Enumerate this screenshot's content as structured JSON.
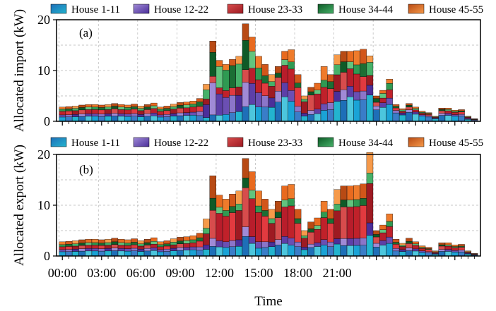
{
  "chart_data": [
    {
      "type": "bar",
      "stacked": true,
      "panel_label": "(a)",
      "ylabel": "Allocated import (kW)",
      "xlabel": "",
      "ylim": [
        0,
        20
      ],
      "yticks": [
        "0",
        "10",
        "20"
      ],
      "grid": true,
      "legend": {
        "placement": "top",
        "entries": [
          "House 1-11",
          "House 12-22",
          "House 23-33",
          "House 34-44",
          "House 45-55"
        ]
      },
      "x_unit": "half-hour slot starting 00:00",
      "totals": [
        2.8,
        2.9,
        3.0,
        3.2,
        3.3,
        3.3,
        3.2,
        3.3,
        3.5,
        3.3,
        3.2,
        3.4,
        3.0,
        3.3,
        3.6,
        2.8,
        3.0,
        3.4,
        3.7,
        3.8,
        4.0,
        4.5,
        7.3,
        15.8,
        12.0,
        11.2,
        12.2,
        12.8,
        19.2,
        16.6,
        12.8,
        11.2,
        9.2,
        10.8,
        13.8,
        14.1,
        9.2,
        5.0,
        6.7,
        7.5,
        10.8,
        9.2,
        13.1,
        13.8,
        13.8,
        13.9,
        14.2,
        12.9,
        5.0,
        6.1,
        8.3,
        3.3,
        2.5,
        3.5,
        2.8,
        2.0,
        1.7,
        1.0,
        2.6,
        2.6,
        2.2,
        2.3,
        1.0,
        0.5
      ],
      "shares": {
        "House 1-11": [
          0.3,
          0.3,
          0.3,
          0.3,
          0.3,
          0.3,
          0.3,
          0.3,
          0.3,
          0.3,
          0.3,
          0.3,
          0.3,
          0.3,
          0.3,
          0.3,
          0.3,
          0.3,
          0.3,
          0.3,
          0.3,
          0.25,
          0.1,
          0.08,
          0.1,
          0.12,
          0.14,
          0.15,
          0.15,
          0.2,
          0.22,
          0.25,
          0.3,
          0.35,
          0.35,
          0.28,
          0.2,
          0.2,
          0.2,
          0.2,
          0.2,
          0.25,
          0.3,
          0.3,
          0.35,
          0.3,
          0.3,
          0.4,
          0.45,
          0.45,
          0.4,
          0.5,
          0.5,
          0.5,
          0.5,
          0.5,
          0.5,
          0.5,
          0.45,
          0.45,
          0.45,
          0.45,
          0.4,
          0.4
        ],
        "House 12-22": [
          0.15,
          0.15,
          0.15,
          0.15,
          0.15,
          0.15,
          0.15,
          0.15,
          0.15,
          0.15,
          0.15,
          0.15,
          0.15,
          0.15,
          0.15,
          0.15,
          0.15,
          0.15,
          0.15,
          0.15,
          0.15,
          0.18,
          0.35,
          0.4,
          0.35,
          0.3,
          0.28,
          0.25,
          0.25,
          0.25,
          0.22,
          0.2,
          0.2,
          0.2,
          0.2,
          0.15,
          0.12,
          0.12,
          0.12,
          0.12,
          0.12,
          0.15,
          0.15,
          0.15,
          0.15,
          0.12,
          0.12,
          0.15,
          0.15,
          0.15,
          0.15,
          0.15,
          0.15,
          0.15,
          0.15,
          0.15,
          0.15,
          0.15,
          0.15,
          0.15,
          0.15,
          0.15,
          0.2,
          0.2
        ],
        "House 23-33": [
          0.25,
          0.25,
          0.25,
          0.25,
          0.25,
          0.25,
          0.25,
          0.25,
          0.25,
          0.25,
          0.25,
          0.25,
          0.25,
          0.25,
          0.25,
          0.25,
          0.25,
          0.25,
          0.25,
          0.25,
          0.25,
          0.22,
          0.15,
          0.08,
          0.1,
          0.12,
          0.12,
          0.13,
          0.13,
          0.18,
          0.2,
          0.22,
          0.25,
          0.25,
          0.25,
          0.3,
          0.4,
          0.45,
          0.45,
          0.4,
          0.3,
          0.3,
          0.25,
          0.25,
          0.25,
          0.25,
          0.2,
          0.15,
          0.15,
          0.15,
          0.2,
          0.15,
          0.15,
          0.15,
          0.15,
          0.15,
          0.15,
          0.15,
          0.2,
          0.2,
          0.2,
          0.2,
          0.2,
          0.2
        ],
        "House 34-44": [
          0.15,
          0.15,
          0.15,
          0.15,
          0.15,
          0.15,
          0.15,
          0.15,
          0.15,
          0.15,
          0.15,
          0.15,
          0.15,
          0.15,
          0.15,
          0.15,
          0.15,
          0.15,
          0.15,
          0.15,
          0.15,
          0.2,
          0.25,
          0.3,
          0.35,
          0.36,
          0.36,
          0.35,
          0.3,
          0.2,
          0.18,
          0.13,
          0.1,
          0.08,
          0.08,
          0.1,
          0.1,
          0.1,
          0.1,
          0.1,
          0.13,
          0.15,
          0.15,
          0.15,
          0.1,
          0.13,
          0.18,
          0.2,
          0.15,
          0.15,
          0.15,
          0.1,
          0.1,
          0.1,
          0.1,
          0.1,
          0.1,
          0.1,
          0.1,
          0.1,
          0.1,
          0.1,
          0.1,
          0.1
        ],
        "House 45-55": [
          0.15,
          0.15,
          0.15,
          0.15,
          0.15,
          0.15,
          0.15,
          0.15,
          0.15,
          0.15,
          0.15,
          0.15,
          0.15,
          0.15,
          0.15,
          0.15,
          0.15,
          0.15,
          0.15,
          0.15,
          0.15,
          0.15,
          0.15,
          0.14,
          0.1,
          0.1,
          0.1,
          0.12,
          0.17,
          0.17,
          0.18,
          0.2,
          0.15,
          0.12,
          0.12,
          0.17,
          0.18,
          0.13,
          0.13,
          0.18,
          0.25,
          0.15,
          0.15,
          0.15,
          0.15,
          0.2,
          0.2,
          0.1,
          0.1,
          0.1,
          0.1,
          0.1,
          0.1,
          0.1,
          0.1,
          0.1,
          0.1,
          0.1,
          0.1,
          0.1,
          0.1,
          0.1,
          0.1,
          0.1
        ]
      }
    },
    {
      "type": "bar",
      "stacked": true,
      "panel_label": "(b)",
      "ylabel": "Allocated export (kW)",
      "xlabel": "Time",
      "ylim": [
        0,
        20
      ],
      "yticks": [
        "0",
        "10",
        "20"
      ],
      "xticks": [
        "00:00",
        "03:00",
        "06:00",
        "09:00",
        "12:00",
        "15:00",
        "18:00",
        "21:00"
      ],
      "grid": true,
      "legend": {
        "placement": "top",
        "entries": [
          "House 1-11",
          "House 12-22",
          "House 23-33",
          "House 34-44",
          "House 45-55"
        ]
      },
      "x_unit": "half-hour slot starting 00:00",
      "totals": [
        2.8,
        2.9,
        3.0,
        3.2,
        3.3,
        3.3,
        3.2,
        3.3,
        3.5,
        3.3,
        3.2,
        3.4,
        3.0,
        3.3,
        3.6,
        2.8,
        3.0,
        3.4,
        3.7,
        3.8,
        4.0,
        4.5,
        7.3,
        15.8,
        12.0,
        11.2,
        12.2,
        12.8,
        19.2,
        16.6,
        12.8,
        11.2,
        9.2,
        10.8,
        13.8,
        14.1,
        9.2,
        5.0,
        6.7,
        7.5,
        10.8,
        9.2,
        13.1,
        13.8,
        13.8,
        13.9,
        14.2,
        20.4,
        5.0,
        6.1,
        8.3,
        3.3,
        2.5,
        3.5,
        2.8,
        2.0,
        1.7,
        1.0,
        2.6,
        2.6,
        2.2,
        2.3,
        1.0,
        0.5
      ],
      "shares": {
        "House 1-11": [
          0.3,
          0.3,
          0.3,
          0.3,
          0.3,
          0.3,
          0.3,
          0.3,
          0.3,
          0.3,
          0.3,
          0.3,
          0.3,
          0.3,
          0.3,
          0.3,
          0.3,
          0.3,
          0.3,
          0.3,
          0.3,
          0.25,
          0.18,
          0.12,
          0.15,
          0.15,
          0.15,
          0.15,
          0.2,
          0.15,
          0.12,
          0.15,
          0.2,
          0.2,
          0.18,
          0.15,
          0.2,
          0.25,
          0.25,
          0.25,
          0.2,
          0.2,
          0.18,
          0.15,
          0.15,
          0.15,
          0.15,
          0.2,
          0.35,
          0.35,
          0.3,
          0.3,
          0.35,
          0.3,
          0.35,
          0.35,
          0.35,
          0.35,
          0.35,
          0.35,
          0.35,
          0.35,
          0.4,
          0.4
        ],
        "House 12-22": [
          0.15,
          0.15,
          0.15,
          0.15,
          0.15,
          0.15,
          0.15,
          0.15,
          0.15,
          0.15,
          0.15,
          0.15,
          0.15,
          0.15,
          0.15,
          0.15,
          0.15,
          0.15,
          0.15,
          0.15,
          0.15,
          0.15,
          0.12,
          0.1,
          0.1,
          0.1,
          0.1,
          0.1,
          0.1,
          0.08,
          0.1,
          0.1,
          0.1,
          0.1,
          0.1,
          0.1,
          0.1,
          0.1,
          0.1,
          0.1,
          0.1,
          0.1,
          0.08,
          0.1,
          0.1,
          0.1,
          0.1,
          0.12,
          0.15,
          0.15,
          0.15,
          0.15,
          0.15,
          0.15,
          0.15,
          0.15,
          0.15,
          0.15,
          0.15,
          0.15,
          0.15,
          0.15,
          0.15,
          0.15
        ],
        "House 23-33": [
          0.2,
          0.2,
          0.2,
          0.2,
          0.2,
          0.2,
          0.2,
          0.2,
          0.2,
          0.2,
          0.2,
          0.2,
          0.2,
          0.2,
          0.2,
          0.2,
          0.2,
          0.2,
          0.2,
          0.2,
          0.2,
          0.25,
          0.3,
          0.35,
          0.45,
          0.45,
          0.45,
          0.45,
          0.4,
          0.45,
          0.45,
          0.45,
          0.4,
          0.4,
          0.42,
          0.45,
          0.4,
          0.35,
          0.35,
          0.35,
          0.4,
          0.4,
          0.42,
          0.45,
          0.45,
          0.45,
          0.45,
          0.38,
          0.25,
          0.25,
          0.25,
          0.25,
          0.25,
          0.25,
          0.25,
          0.25,
          0.25,
          0.25,
          0.25,
          0.25,
          0.25,
          0.25,
          0.2,
          0.2
        ],
        "House 34-44": [
          0.15,
          0.15,
          0.15,
          0.15,
          0.15,
          0.15,
          0.15,
          0.15,
          0.15,
          0.15,
          0.15,
          0.15,
          0.15,
          0.15,
          0.15,
          0.15,
          0.15,
          0.15,
          0.15,
          0.15,
          0.15,
          0.15,
          0.15,
          0.15,
          0.1,
          0.1,
          0.1,
          0.1,
          0.1,
          0.1,
          0.1,
          0.1,
          0.1,
          0.1,
          0.1,
          0.1,
          0.1,
          0.1,
          0.1,
          0.1,
          0.1,
          0.1,
          0.1,
          0.1,
          0.1,
          0.1,
          0.1,
          0.1,
          0.1,
          0.1,
          0.12,
          0.12,
          0.1,
          0.12,
          0.1,
          0.1,
          0.1,
          0.1,
          0.1,
          0.1,
          0.1,
          0.1,
          0.1,
          0.1
        ],
        "House 45-55": [
          0.2,
          0.2,
          0.2,
          0.2,
          0.2,
          0.2,
          0.2,
          0.2,
          0.2,
          0.2,
          0.2,
          0.2,
          0.2,
          0.2,
          0.2,
          0.2,
          0.2,
          0.2,
          0.2,
          0.2,
          0.2,
          0.2,
          0.25,
          0.28,
          0.2,
          0.2,
          0.2,
          0.2,
          0.2,
          0.22,
          0.23,
          0.2,
          0.2,
          0.2,
          0.2,
          0.2,
          0.2,
          0.2,
          0.2,
          0.2,
          0.2,
          0.2,
          0.22,
          0.2,
          0.2,
          0.2,
          0.2,
          0.2,
          0.15,
          0.15,
          0.18,
          0.18,
          0.15,
          0.18,
          0.15,
          0.15,
          0.15,
          0.15,
          0.15,
          0.15,
          0.15,
          0.15,
          0.15,
          0.15
        ]
      }
    }
  ],
  "colors": {
    "House 1-11": [
      "#1aa3d6",
      "#3a7dc8",
      "#23b4cf",
      "#1e6fb8",
      "#4cc6dd"
    ],
    "House 12-22": [
      "#6b4fb3",
      "#8b75c9",
      "#4b2f9a",
      "#a08ad6",
      "#5d3fa8"
    ],
    "House 23-33": [
      "#c0212a",
      "#e23a3f",
      "#9e1a22",
      "#d74c4c",
      "#b81d2b"
    ],
    "House 34-44": [
      "#2f9a52",
      "#1b6e34",
      "#46b169",
      "#0e5a27",
      "#62c47e"
    ],
    "House 45-55": [
      "#ef7b2b",
      "#d2561a",
      "#f69a4a",
      "#b84a14",
      "#e86a1f"
    ]
  }
}
